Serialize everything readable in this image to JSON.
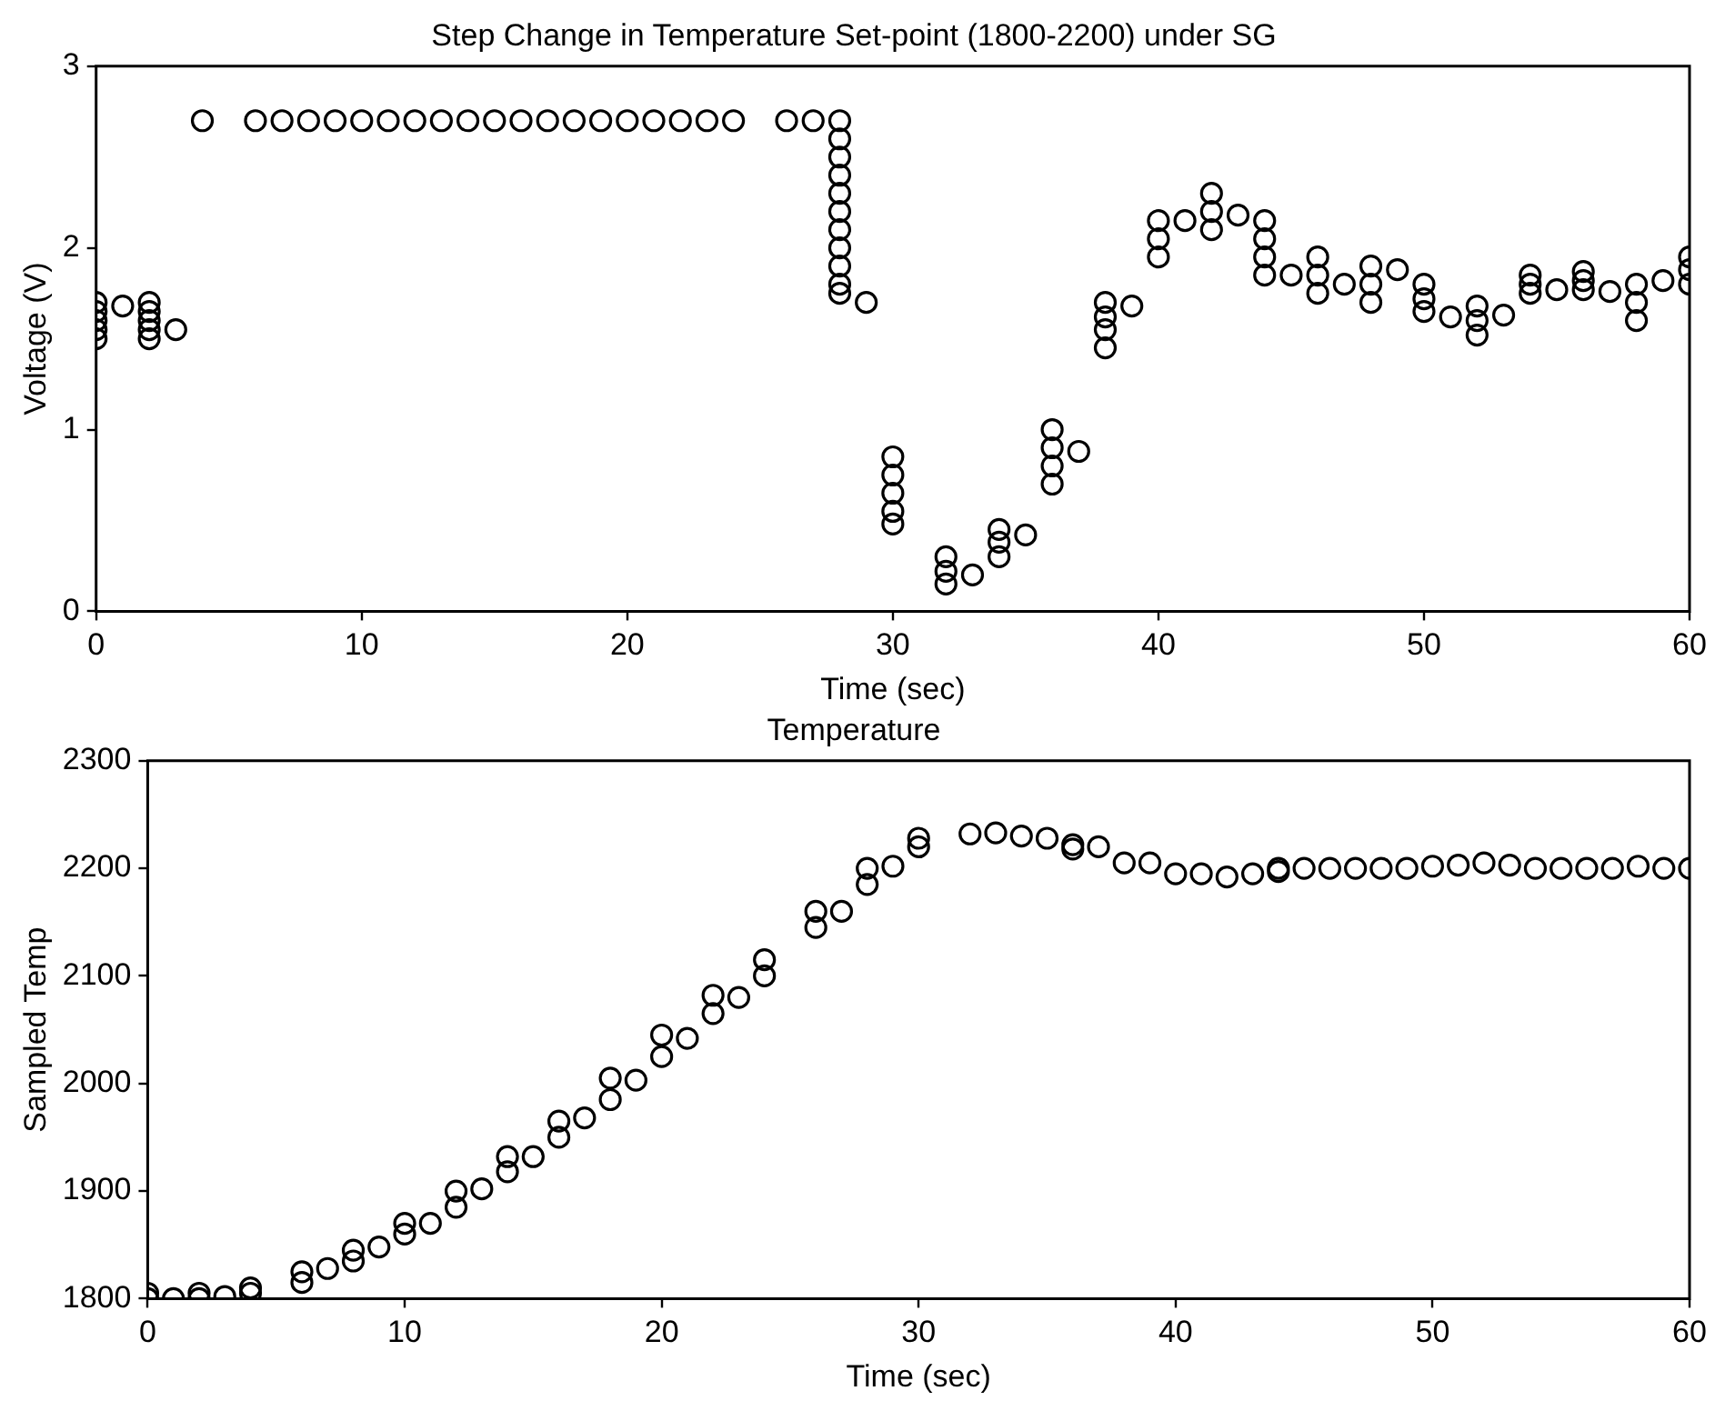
{
  "chart_data": [
    {
      "type": "scatter",
      "title": "Step Change in Temperature Set-point (1800-2200) under SG",
      "xlabel": "Time (sec)",
      "ylabel": "Voltage (V)",
      "xlim": [
        0,
        60
      ],
      "xticks": [
        0,
        10,
        20,
        30,
        40,
        50,
        60
      ],
      "ylim": [
        0,
        3
      ],
      "yticks": [
        0,
        1,
        2,
        3
      ],
      "grid": false,
      "marker": "circle",
      "legend": false,
      "x": [
        0,
        0,
        0,
        0,
        0,
        1,
        2,
        2,
        2,
        2,
        2,
        3,
        4,
        6,
        7,
        8,
        9,
        10,
        11,
        12,
        13,
        14,
        15,
        16,
        17,
        18,
        19,
        20,
        21,
        22,
        23,
        24,
        26,
        27,
        28,
        28,
        28,
        28,
        28,
        28,
        28,
        28,
        28,
        28,
        28,
        29,
        30,
        30,
        30,
        30,
        30,
        32,
        32,
        32,
        33,
        34,
        34,
        34,
        35,
        36,
        36,
        36,
        36,
        37,
        38,
        38,
        38,
        38,
        39,
        40,
        40,
        40,
        41,
        42,
        42,
        42,
        43,
        44,
        44,
        44,
        44,
        45,
        46,
        46,
        46,
        47,
        48,
        48,
        48,
        49,
        50,
        50,
        50,
        51,
        52,
        52,
        52,
        53,
        54,
        54,
        54,
        55,
        56,
        56,
        56,
        57,
        58,
        58,
        58,
        59,
        60,
        60,
        60
      ],
      "series": [
        {
          "color": "#000000",
          "values": [
            1.5,
            1.55,
            1.6,
            1.65,
            1.7,
            1.68,
            1.5,
            1.55,
            1.6,
            1.65,
            1.7,
            1.55,
            2.7,
            2.7,
            2.7,
            2.7,
            2.7,
            2.7,
            2.7,
            2.7,
            2.7,
            2.7,
            2.7,
            2.7,
            2.7,
            2.7,
            2.7,
            2.7,
            2.7,
            2.7,
            2.7,
            2.7,
            2.7,
            2.7,
            2.7,
            2.6,
            2.5,
            2.4,
            2.3,
            2.2,
            2.1,
            2.0,
            1.9,
            1.8,
            1.75,
            1.7,
            0.85,
            0.75,
            0.65,
            0.55,
            0.48,
            0.15,
            0.22,
            0.3,
            0.2,
            0.3,
            0.38,
            0.45,
            0.42,
            0.7,
            0.8,
            0.9,
            1.0,
            0.88,
            1.45,
            1.55,
            1.62,
            1.7,
            1.68,
            1.95,
            2.05,
            2.15,
            2.15,
            2.1,
            2.2,
            2.3,
            2.18,
            1.85,
            1.95,
            2.05,
            2.15,
            1.85,
            1.75,
            1.85,
            1.95,
            1.8,
            1.7,
            1.8,
            1.9,
            1.88,
            1.65,
            1.72,
            1.8,
            1.62,
            1.52,
            1.6,
            1.68,
            1.63,
            1.75,
            1.8,
            1.85,
            1.77,
            1.77,
            1.82,
            1.87,
            1.76,
            1.6,
            1.7,
            1.8,
            1.82,
            1.8,
            1.88,
            1.95
          ]
        }
      ]
    },
    {
      "type": "scatter",
      "title": "Temperature",
      "xlabel": "Time (sec)",
      "ylabel": "Sampled Temp",
      "xlim": [
        0,
        60
      ],
      "xticks": [
        0,
        10,
        20,
        30,
        40,
        50,
        60
      ],
      "ylim": [
        1800,
        2300
      ],
      "yticks": [
        1800,
        1900,
        2000,
        2100,
        2200,
        2300
      ],
      "grid": false,
      "marker": "circle",
      "legend": false,
      "x": [
        0,
        0,
        1,
        2,
        2,
        3,
        4,
        4,
        6,
        6,
        7,
        8,
        8,
        9,
        10,
        10,
        11,
        12,
        12,
        13,
        14,
        14,
        15,
        16,
        16,
        17,
        18,
        18,
        19,
        20,
        20,
        21,
        22,
        22,
        23,
        24,
        24,
        26,
        26,
        27,
        28,
        28,
        29,
        30,
        30,
        32,
        33,
        34,
        35,
        36,
        36,
        37,
        38,
        39,
        40,
        41,
        42,
        43,
        44,
        44,
        45,
        46,
        47,
        48,
        49,
        50,
        51,
        52,
        53,
        54,
        55,
        56,
        57,
        58,
        59,
        60
      ],
      "series": [
        {
          "color": "#000000",
          "values": [
            1800,
            1805,
            1800,
            1800,
            1805,
            1802,
            1805,
            1810,
            1815,
            1825,
            1828,
            1835,
            1845,
            1848,
            1860,
            1870,
            1870,
            1885,
            1900,
            1902,
            1918,
            1932,
            1932,
            1950,
            1965,
            1968,
            1985,
            2005,
            2003,
            2025,
            2045,
            2042,
            2065,
            2082,
            2080,
            2100,
            2115,
            2145,
            2160,
            2160,
            2185,
            2200,
            2202,
            2220,
            2228,
            2232,
            2233,
            2230,
            2228,
            2218,
            2222,
            2220,
            2205,
            2205,
            2195,
            2195,
            2192,
            2195,
            2197,
            2200,
            2200,
            2200,
            2200,
            2200,
            2200,
            2202,
            2203,
            2205,
            2203,
            2200,
            2200,
            2200,
            2200,
            2202,
            2200,
            2200
          ]
        }
      ]
    }
  ]
}
